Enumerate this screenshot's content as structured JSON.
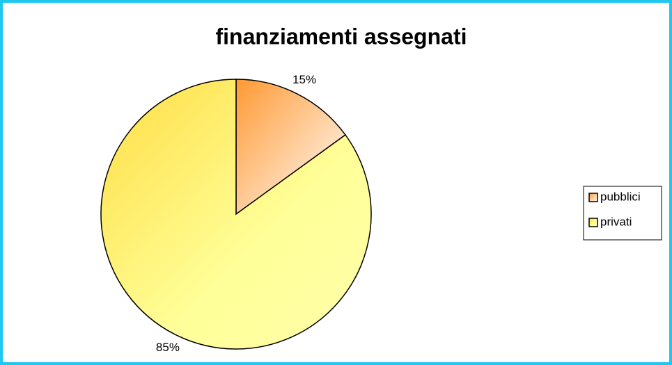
{
  "chart_data": {
    "type": "pie",
    "title": "finanziamenti assegnati",
    "categories": [
      "pubblici",
      "privati"
    ],
    "values": [
      15,
      85
    ],
    "value_labels": [
      "15%",
      "85%"
    ],
    "colors": [
      "#ff9933",
      "#ffdd44"
    ],
    "legend": "right"
  }
}
